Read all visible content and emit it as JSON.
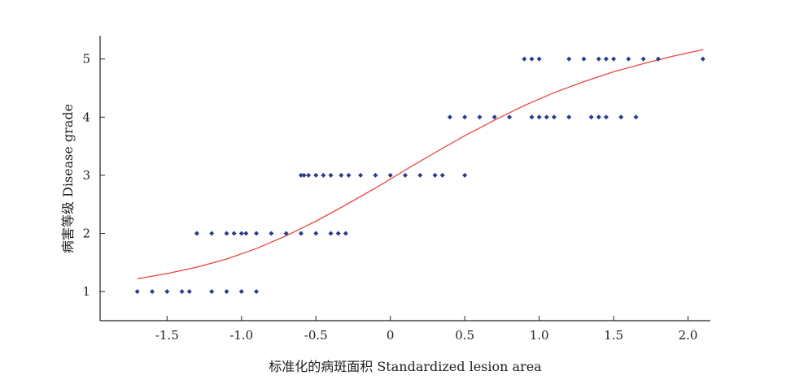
{
  "chart_data": {
    "type": "scatter",
    "title": "",
    "xlabel": "标准化的病斑面积 Standardized lesion area",
    "ylabel": "病害等级 Disease grade",
    "xlim": [
      -1.95,
      2.15
    ],
    "ylim": [
      0.5,
      5.4
    ],
    "xticks": [
      -1.5,
      -1.0,
      -0.5,
      0,
      0.5,
      1.0,
      1.5,
      2.0
    ],
    "xtick_labels": [
      "-1.5",
      "-1.0",
      "-0.5",
      "0",
      "0.5",
      "1.0",
      "1.5",
      "2.0"
    ],
    "yticks": [
      1,
      2,
      3,
      4,
      5
    ],
    "ytick_labels": [
      "1",
      "2",
      "3",
      "4",
      "5"
    ],
    "grid": false,
    "colors": {
      "points": "#2b3a8f",
      "curve": "#e8453c",
      "axis": "#222222"
    },
    "series": [
      {
        "kind": "points",
        "x": [
          -1.7,
          -1.6,
          -1.5,
          -1.4,
          -1.35,
          -1.2,
          -1.1,
          -1.0,
          -0.9,
          -1.3,
          -1.2,
          -1.1,
          -1.05,
          -1.0,
          -0.97,
          -0.9,
          -0.8,
          -0.7,
          -0.6,
          -0.5,
          -0.4,
          -0.35,
          -0.3,
          -0.6,
          -0.58,
          -0.55,
          -0.5,
          -0.45,
          -0.4,
          -0.33,
          -0.28,
          -0.2,
          -0.1,
          0.0,
          0.1,
          0.2,
          0.3,
          0.35,
          0.5,
          0.4,
          0.5,
          0.6,
          0.7,
          0.8,
          0.95,
          1.0,
          1.05,
          1.1,
          1.2,
          1.35,
          1.4,
          1.45,
          1.55,
          1.65,
          0.9,
          0.95,
          1.0,
          1.2,
          1.3,
          1.4,
          1.45,
          1.5,
          1.6,
          1.7,
          1.8,
          2.1
        ],
        "y": [
          1,
          1,
          1,
          1,
          1,
          1,
          1,
          1,
          1,
          2,
          2,
          2,
          2,
          2,
          2,
          2,
          2,
          2,
          2,
          2,
          2,
          2,
          2,
          3,
          3,
          3,
          3,
          3,
          3,
          3,
          3,
          3,
          3,
          3,
          3,
          3,
          3,
          3,
          3,
          4,
          4,
          4,
          4,
          4,
          4,
          4,
          4,
          4,
          4,
          4,
          4,
          4,
          4,
          4,
          5,
          5,
          5,
          5,
          5,
          5,
          5,
          5,
          5,
          5,
          5,
          5
        ]
      },
      {
        "kind": "curve",
        "x": [
          -1.7,
          -1.5,
          -1.3,
          -1.1,
          -0.9,
          -0.7,
          -0.5,
          -0.3,
          -0.1,
          0.1,
          0.3,
          0.5,
          0.7,
          0.9,
          1.1,
          1.3,
          1.5,
          1.7,
          1.9,
          2.1
        ],
        "y": [
          1.22,
          1.31,
          1.42,
          1.56,
          1.74,
          1.96,
          2.21,
          2.49,
          2.78,
          3.09,
          3.39,
          3.68,
          3.95,
          4.2,
          4.42,
          4.61,
          4.78,
          4.92,
          5.05,
          5.16
        ]
      }
    ]
  }
}
